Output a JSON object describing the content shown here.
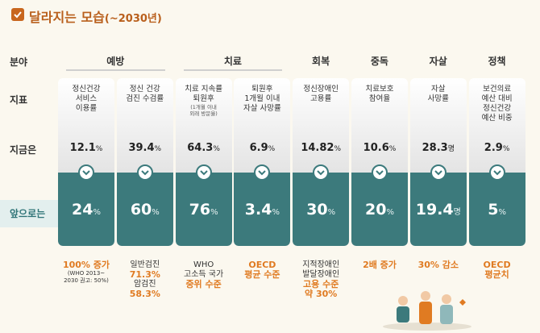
{
  "header": {
    "title": "달라지는 모습",
    "title_sub": "(~2030년)"
  },
  "row_labels": [
    "분야",
    "지표",
    "지금은",
    "앞으로는"
  ],
  "groups": [
    {
      "label": "예방",
      "span": 2
    },
    {
      "label": "치료",
      "span": 2
    },
    {
      "label": "회복",
      "span": 1
    },
    {
      "label": "중독",
      "span": 1
    },
    {
      "label": "자살",
      "span": 1
    },
    {
      "label": "정책",
      "span": 1
    }
  ],
  "columns": [
    {
      "indicator": [
        "정신건강",
        "서비스",
        "이용률"
      ],
      "indicator_note": [],
      "current": {
        "value": "12.1",
        "unit": "%"
      },
      "future": {
        "value": "24",
        "unit": "%"
      },
      "notes": [
        {
          "text": "100% 증가",
          "style": "accent"
        },
        {
          "text": "(WHO 2013~",
          "style": "small"
        },
        {
          "text": "2030 권고: 50%)",
          "style": "small"
        }
      ]
    },
    {
      "indicator": [
        "정신 건강",
        "검진 수검률"
      ],
      "indicator_note": [],
      "current": {
        "value": "39.4",
        "unit": "%"
      },
      "future": {
        "value": "60",
        "unit": "%"
      },
      "notes": [
        {
          "text": "일반검진",
          "style": "plain"
        },
        {
          "text": "71.3%",
          "style": "accent"
        },
        {
          "text": "암검진",
          "style": "plain"
        },
        {
          "text": "58.3%",
          "style": "accent"
        }
      ]
    },
    {
      "indicator": [
        "치료 지속률",
        "퇴원후"
      ],
      "indicator_note": [
        "(1개월 이내",
        "외래 방문율)"
      ],
      "current": {
        "value": "64.3",
        "unit": "%"
      },
      "future": {
        "value": "76",
        "unit": "%"
      },
      "notes": [
        {
          "text": "WHO",
          "style": "plain"
        },
        {
          "text": "고소득 국가",
          "style": "plain"
        },
        {
          "text": "중위 수준",
          "style": "accent"
        }
      ]
    },
    {
      "indicator": [
        "퇴원후",
        "1개월 이내",
        "자살 사망률"
      ],
      "indicator_note": [],
      "current": {
        "value": "6.9",
        "unit": "%"
      },
      "future": {
        "value": "3.4",
        "unit": "%"
      },
      "notes": [
        {
          "text": "OECD",
          "style": "accent"
        },
        {
          "text": "평균 수준",
          "style": "accent"
        }
      ]
    },
    {
      "indicator": [
        "정신장애인",
        "고용률"
      ],
      "indicator_note": [],
      "current": {
        "value": "14.82",
        "unit": "%"
      },
      "future": {
        "value": "30",
        "unit": "%"
      },
      "notes": [
        {
          "text": "지적장애인",
          "style": "plain"
        },
        {
          "text": "발달장애인",
          "style": "plain"
        },
        {
          "text": "고용 수준",
          "style": "accent"
        },
        {
          "text": "약 30%",
          "style": "accent"
        }
      ]
    },
    {
      "indicator": [
        "치료보호",
        "참여율"
      ],
      "indicator_note": [],
      "current": {
        "value": "10.6",
        "unit": "%"
      },
      "future": {
        "value": "20",
        "unit": "%"
      },
      "notes": [
        {
          "text": "2배 증가",
          "style": "accent"
        }
      ]
    },
    {
      "indicator": [
        "자살",
        "사망률"
      ],
      "indicator_note": [],
      "current": {
        "value": "28.3",
        "unit": "명"
      },
      "future": {
        "value": "19.4",
        "unit": "명"
      },
      "notes": [
        {
          "text": "30% 감소",
          "style": "accent"
        }
      ]
    },
    {
      "indicator": [
        "보건의료",
        "예산 대비",
        "정신건강",
        "예산 비중"
      ],
      "indicator_note": [],
      "current": {
        "value": "2.9",
        "unit": "%"
      },
      "future": {
        "value": "5",
        "unit": "%"
      },
      "notes": [
        {
          "text": "OECD",
          "style": "accent"
        },
        {
          "text": "평균치",
          "style": "accent"
        }
      ]
    }
  ]
}
